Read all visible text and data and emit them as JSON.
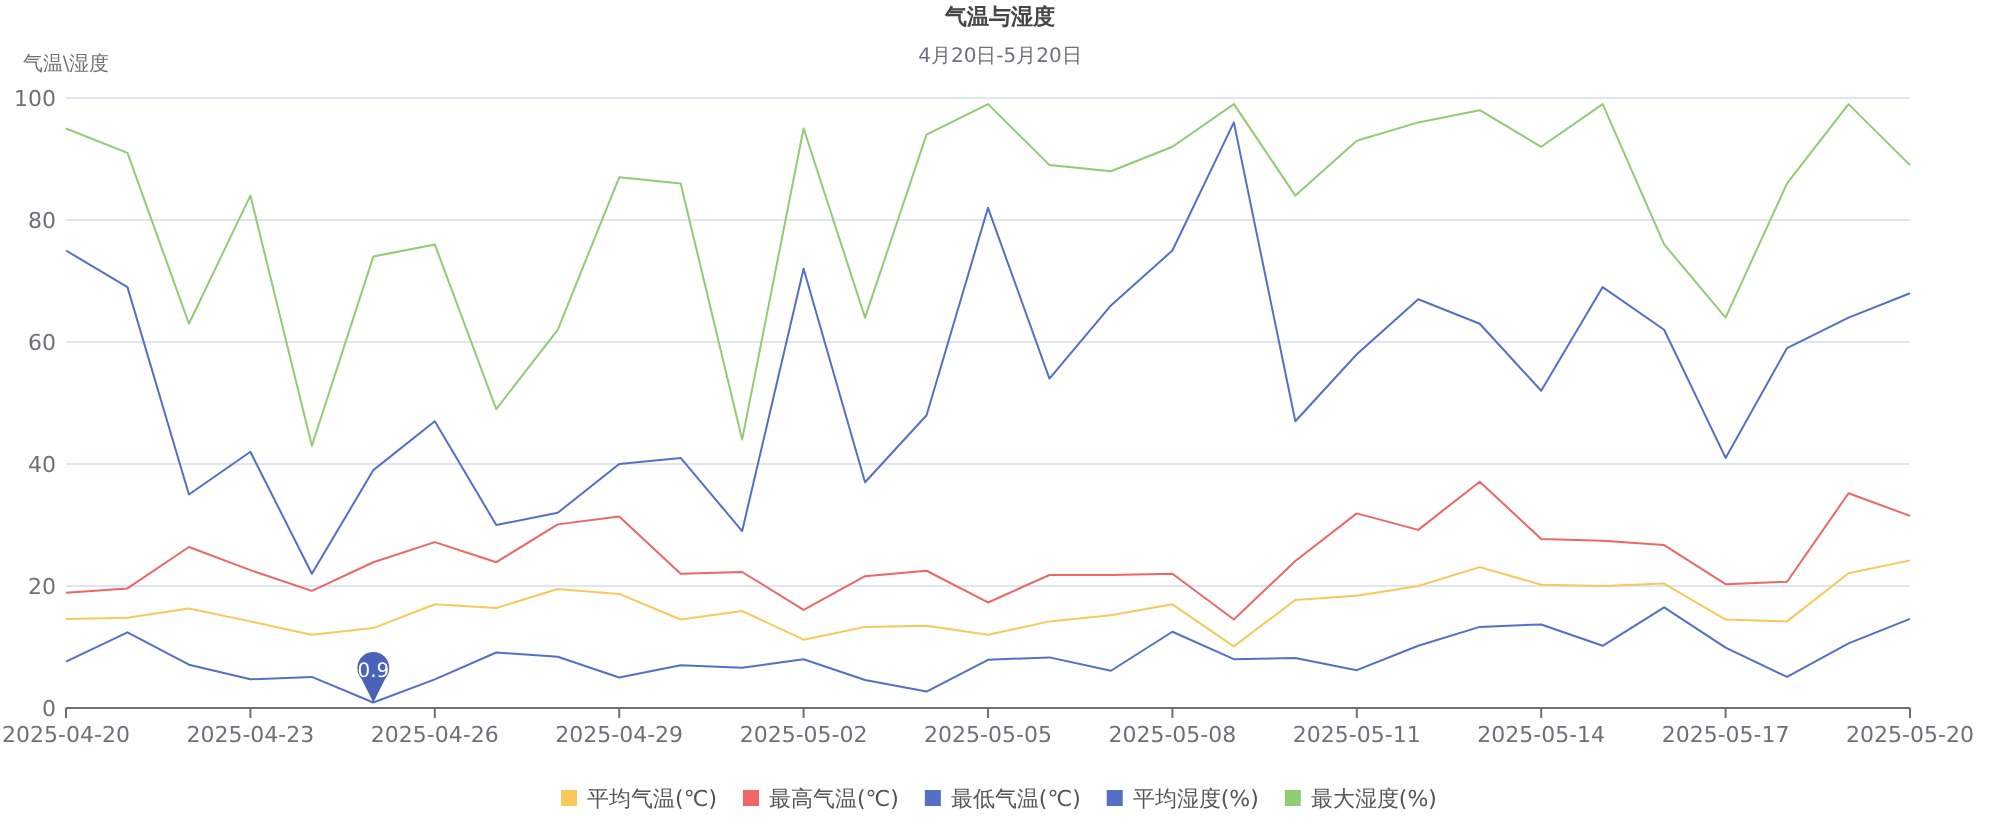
{
  "chart_data": {
    "type": "line",
    "title": "气温与湿度",
    "subtitle": "4月20日-5月20日",
    "ylabel": "气温\\湿度",
    "x": [
      "2025-04-20",
      "2025-04-21",
      "2025-04-22",
      "2025-04-23",
      "2025-04-24",
      "2025-04-25",
      "2025-04-26",
      "2025-04-27",
      "2025-04-28",
      "2025-04-29",
      "2025-04-30",
      "2025-05-01",
      "2025-05-02",
      "2025-05-03",
      "2025-05-04",
      "2025-05-05",
      "2025-05-06",
      "2025-05-07",
      "2025-05-08",
      "2025-05-09",
      "2025-05-10",
      "2025-05-11",
      "2025-05-12",
      "2025-05-13",
      "2025-05-14",
      "2025-05-15",
      "2025-05-16",
      "2025-05-17",
      "2025-05-18",
      "2025-05-19",
      "2025-05-20"
    ],
    "series": [
      {
        "name": "平均气温(℃)",
        "color": "#fac858",
        "values": [
          14.6,
          14.8,
          16.3,
          14.2,
          12.0,
          13.1,
          17.0,
          16.4,
          19.5,
          18.7,
          14.5,
          15.9,
          11.2,
          13.3,
          13.5,
          12.0,
          14.2,
          15.2,
          17.0,
          10.1,
          17.7,
          18.4,
          20.0,
          23.1,
          20.2,
          20.0,
          20.4,
          14.5,
          14.2,
          22.1,
          24.2
        ]
      },
      {
        "name": "最高气温(℃)",
        "color": "#ee6666",
        "values": [
          18.9,
          19.6,
          26.4,
          22.6,
          19.2,
          23.9,
          27.2,
          23.9,
          30.1,
          31.4,
          22.0,
          22.3,
          16.1,
          21.6,
          22.5,
          17.3,
          21.8,
          21.8,
          22.0,
          14.5,
          24.1,
          31.9,
          29.2,
          37.1,
          27.7,
          27.4,
          26.7,
          20.3,
          20.7,
          35.2,
          31.5
        ]
      },
      {
        "name": "最低气温(℃)",
        "color": "#5470c6",
        "values": [
          7.6,
          12.4,
          7.1,
          4.7,
          5.1,
          0.9,
          4.7,
          9.1,
          8.4,
          5.0,
          7.0,
          6.6,
          8.0,
          4.6,
          2.7,
          7.9,
          8.3,
          6.1,
          12.5,
          8.0,
          8.2,
          6.2,
          10.2,
          13.3,
          13.7,
          10.2,
          16.5,
          9.9,
          5.1,
          10.6,
          14.6
        ]
      },
      {
        "name": "平均湿度(%)",
        "color": "#5470c6",
        "values": [
          75,
          69,
          35,
          42,
          22,
          39,
          47,
          30,
          32,
          40,
          41,
          29,
          72,
          37,
          48,
          82,
          54,
          66,
          75,
          96,
          47,
          58,
          67,
          63,
          52,
          69,
          62,
          41,
          59,
          64,
          68
        ]
      },
      {
        "name": "最大湿度(%)",
        "color": "#91cc75",
        "values": [
          95,
          91,
          63,
          84,
          43,
          74,
          76,
          49,
          62,
          87,
          86,
          44,
          95,
          64,
          94,
          99,
          89,
          88,
          92,
          99,
          84,
          93,
          96,
          98,
          92,
          99,
          76,
          64,
          86,
          99,
          89
        ]
      }
    ],
    "annotations": [
      {
        "text": "0.9",
        "x": "2025-04-25",
        "y": 0.9
      }
    ],
    "xlim": [
      "2025-04-20",
      "2025-05-20"
    ],
    "xticks": [
      "2025-04-20",
      "2025-04-23",
      "2025-04-26",
      "2025-04-29",
      "2025-05-02",
      "2025-05-05",
      "2025-05-08",
      "2025-05-11",
      "2025-05-14",
      "2025-05-17",
      "2025-05-20"
    ],
    "ylim": [
      0,
      100
    ],
    "yticks": [
      0,
      20,
      40,
      60,
      80,
      100
    ],
    "grid": "y",
    "legend": "bottom",
    "marker": "none",
    "line_style": "solid"
  }
}
